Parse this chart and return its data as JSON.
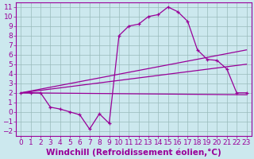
{
  "xlabel": "Windchill (Refroidissement éolien,°C)",
  "background_color": "#cce8ee",
  "line_color": "#990099",
  "grid_color": "#99bbbb",
  "xlim": [
    -0.5,
    23.5
  ],
  "ylim": [
    -2.5,
    11.5
  ],
  "xticks": [
    0,
    1,
    2,
    3,
    4,
    5,
    6,
    7,
    8,
    9,
    10,
    11,
    12,
    13,
    14,
    15,
    16,
    17,
    18,
    19,
    20,
    21,
    22,
    23
  ],
  "yticks": [
    -2,
    -1,
    0,
    1,
    2,
    3,
    4,
    5,
    6,
    7,
    8,
    9,
    10,
    11
  ],
  "curve1_x": [
    0,
    1,
    2,
    3,
    4,
    5,
    6,
    7,
    8,
    9,
    10,
    11,
    12,
    13,
    14,
    15,
    16,
    17,
    18,
    19,
    20,
    21,
    22,
    23
  ],
  "curve1_y": [
    2.0,
    2.0,
    2.0,
    0.5,
    0.3,
    0.0,
    -0.3,
    -1.8,
    -0.2,
    -1.2,
    8.0,
    9.0,
    9.2,
    10.0,
    10.2,
    11.0,
    10.5,
    9.5,
    6.5,
    5.5,
    5.4,
    4.5,
    2.0,
    2.0
  ],
  "line1_x": [
    0,
    23
  ],
  "line1_y": [
    2.0,
    6.5
  ],
  "line2_x": [
    0,
    23
  ],
  "line2_y": [
    2.0,
    5.0
  ],
  "line3_x": [
    0,
    23
  ],
  "line3_y": [
    2.0,
    1.8
  ],
  "tick_fontsize": 6.5,
  "label_fontsize": 7.5
}
